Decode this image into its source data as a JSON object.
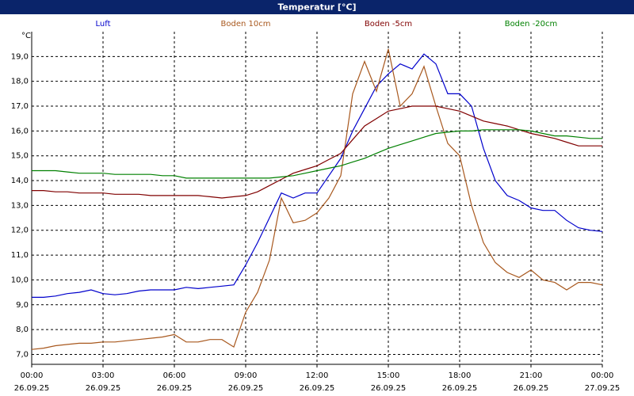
{
  "chart_data": {
    "type": "line",
    "title": "Temperatur [°C]",
    "y_label": "°C",
    "x": [
      0,
      0.5,
      1,
      1.5,
      2,
      2.5,
      3,
      3.5,
      4,
      4.5,
      5,
      5.5,
      6,
      6.5,
      7,
      7.5,
      8,
      8.5,
      9,
      9.5,
      10,
      10.5,
      11,
      11.5,
      12,
      12.5,
      13,
      13.5,
      14,
      14.5,
      15,
      15.5,
      16,
      16.5,
      17,
      17.5,
      18,
      18.5,
      19,
      19.5,
      20,
      20.5,
      21,
      21.5,
      22,
      22.5,
      23,
      23.5,
      24
    ],
    "xlim": [
      0,
      24
    ],
    "xticks": [
      {
        "value": 0,
        "label": "00:00"
      },
      {
        "value": 3,
        "label": "03:00"
      },
      {
        "value": 6,
        "label": "06:00"
      },
      {
        "value": 9,
        "label": "09:00"
      },
      {
        "value": 12,
        "label": "12:00"
      },
      {
        "value": 15,
        "label": "15:00"
      },
      {
        "value": 18,
        "label": "18:00"
      },
      {
        "value": 21,
        "label": "21:00"
      },
      {
        "value": 24,
        "label": "00:00"
      }
    ],
    "xtick_dates": [
      "26.09.25",
      "26.09.25",
      "26.09.25",
      "26.09.25",
      "26.09.25",
      "26.09.25",
      "26.09.25",
      "26.09.25",
      "27.09.25"
    ],
    "ylim": [
      6.6,
      20.0
    ],
    "yticks": [
      {
        "value": 7,
        "label": "7,0"
      },
      {
        "value": 8,
        "label": "8,0"
      },
      {
        "value": 9,
        "label": "9,0"
      },
      {
        "value": 10,
        "label": "10,0"
      },
      {
        "value": 11,
        "label": "11,0"
      },
      {
        "value": 12,
        "label": "12,0"
      },
      {
        "value": 13,
        "label": "13,0"
      },
      {
        "value": 14,
        "label": "14,0"
      },
      {
        "value": 15,
        "label": "15,0"
      },
      {
        "value": 16,
        "label": "16,0"
      },
      {
        "value": 17,
        "label": "17,0"
      },
      {
        "value": 18,
        "label": "18,0"
      },
      {
        "value": 19,
        "label": "19,0"
      }
    ],
    "grid": true,
    "series": [
      {
        "name": "Luft",
        "color": "#0000cc",
        "values": [
          9.3,
          9.3,
          9.35,
          9.45,
          9.5,
          9.6,
          9.45,
          9.4,
          9.45,
          9.55,
          9.6,
          9.6,
          9.6,
          9.7,
          9.65,
          9.7,
          9.75,
          9.8,
          10.6,
          11.5,
          12.5,
          13.5,
          13.3,
          13.5,
          13.5,
          14.2,
          14.9,
          16.0,
          16.9,
          17.8,
          18.3,
          18.7,
          18.5,
          19.1,
          18.7,
          17.5,
          17.5,
          17.0,
          15.3,
          14.0,
          13.4,
          13.2,
          12.9,
          12.8,
          12.8,
          12.4,
          12.1,
          12.0,
          11.95
        ]
      },
      {
        "name": "Boden 10cm",
        "color": "#a8581e",
        "values": [
          7.2,
          7.25,
          7.35,
          7.4,
          7.45,
          7.45,
          7.5,
          7.5,
          7.55,
          7.6,
          7.65,
          7.7,
          7.8,
          7.5,
          7.5,
          7.6,
          7.6,
          7.3,
          8.7,
          9.5,
          10.8,
          13.3,
          12.3,
          12.4,
          12.7,
          13.3,
          14.2,
          17.5,
          18.8,
          17.6,
          19.3,
          17.0,
          17.5,
          18.6,
          17.0,
          15.5,
          15.0,
          13.0,
          11.5,
          10.7,
          10.3,
          10.1,
          10.4,
          10.0,
          9.9,
          9.6,
          9.9,
          9.9,
          9.8
        ]
      },
      {
        "name": "Boden -5cm",
        "color": "#800000",
        "values": [
          13.6,
          13.6,
          13.55,
          13.55,
          13.5,
          13.5,
          13.5,
          13.45,
          13.45,
          13.45,
          13.4,
          13.4,
          13.4,
          13.4,
          13.4,
          13.35,
          13.3,
          13.35,
          13.4,
          13.55,
          13.8,
          14.05,
          14.3,
          14.45,
          14.6,
          14.85,
          15.1,
          15.65,
          16.2,
          16.5,
          16.8,
          16.9,
          17.0,
          17.0,
          17.0,
          16.9,
          16.8,
          16.6,
          16.4,
          16.3,
          16.2,
          16.05,
          15.9,
          15.8,
          15.7,
          15.55,
          15.4,
          15.4,
          15.4
        ]
      },
      {
        "name": "Boden -20cm",
        "color": "#008000",
        "values": [
          14.4,
          14.4,
          14.4,
          14.35,
          14.3,
          14.3,
          14.3,
          14.25,
          14.25,
          14.25,
          14.25,
          14.2,
          14.2,
          14.1,
          14.1,
          14.1,
          14.1,
          14.1,
          14.1,
          14.1,
          14.1,
          14.15,
          14.2,
          14.3,
          14.4,
          14.5,
          14.6,
          14.75,
          14.9,
          15.1,
          15.3,
          15.45,
          15.6,
          15.75,
          15.9,
          15.95,
          16.0,
          16.0,
          16.05,
          16.05,
          16.05,
          16.05,
          16.0,
          15.9,
          15.8,
          15.8,
          15.75,
          15.7,
          15.7
        ]
      }
    ]
  }
}
